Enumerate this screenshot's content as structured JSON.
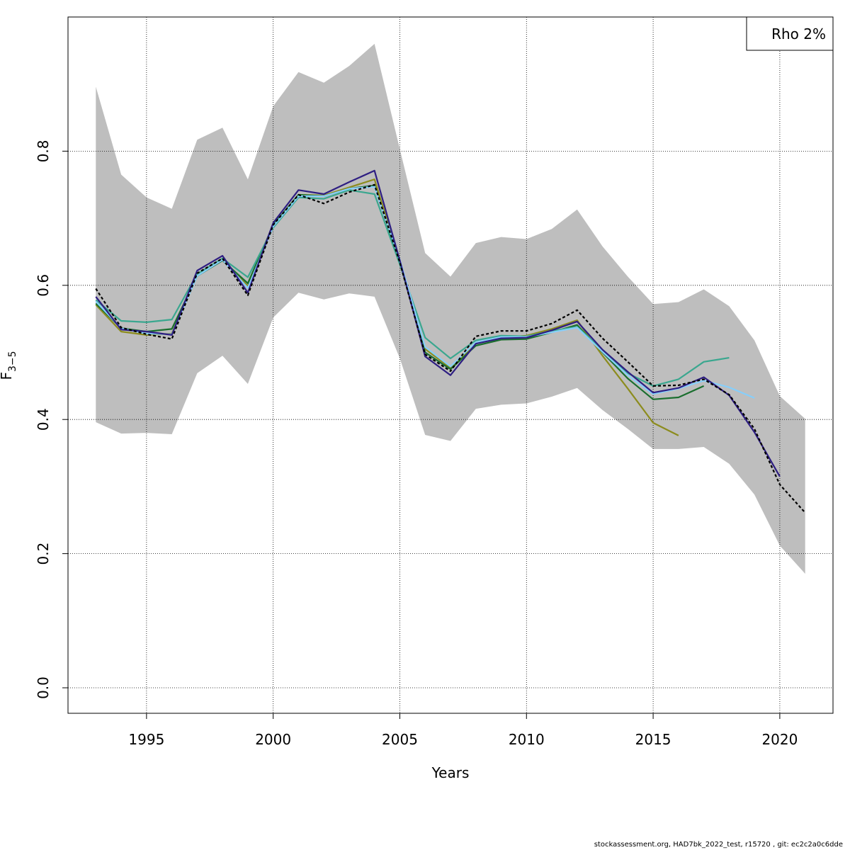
{
  "chart_data": {
    "type": "line",
    "title": "",
    "xlabel": "Years",
    "ylabel_main": "F",
    "ylabel_sub": "3−5",
    "xlim": [
      1991.9,
      2022.1
    ],
    "ylim": [
      -0.038,
      1.0
    ],
    "xticks": [
      1995,
      2000,
      2005,
      2010,
      2015,
      2020
    ],
    "yticks": [
      0.0,
      0.2,
      0.4,
      0.6,
      0.8
    ],
    "ytick_labels": [
      "0.0",
      "0.2",
      "0.4",
      "0.6",
      "0.8"
    ],
    "grid": true,
    "legend_text": "Rho 2%",
    "legend_position": "top-right",
    "confidence_band": {
      "x": [
        1993,
        1994,
        1995,
        1996,
        1997,
        1998,
        1999,
        2000,
        2001,
        2002,
        2003,
        2004,
        2005,
        2006,
        2007,
        2008,
        2009,
        2010,
        2011,
        2012,
        2013,
        2014,
        2015,
        2016,
        2017,
        2018,
        2019,
        2020,
        2021
      ],
      "lower": [
        0.396,
        0.379,
        0.38,
        0.378,
        0.469,
        0.495,
        0.453,
        0.552,
        0.589,
        0.579,
        0.588,
        0.583,
        0.491,
        0.377,
        0.368,
        0.416,
        0.422,
        0.424,
        0.434,
        0.447,
        0.414,
        0.386,
        0.356,
        0.356,
        0.359,
        0.334,
        0.288,
        0.212,
        0.17
      ],
      "upper": [
        0.896,
        0.765,
        0.731,
        0.714,
        0.817,
        0.835,
        0.758,
        0.867,
        0.918,
        0.902,
        0.927,
        0.96,
        0.803,
        0.648,
        0.613,
        0.663,
        0.672,
        0.669,
        0.684,
        0.713,
        0.658,
        0.613,
        0.572,
        0.575,
        0.594,
        0.569,
        0.518,
        0.435,
        0.401
      ],
      "color": "#bebebe"
    },
    "series": [
      {
        "x": [
          1993,
          1994,
          1995,
          1996,
          1997,
          1998,
          1999,
          2000,
          2001,
          2002,
          2003,
          2004,
          2005,
          2006,
          2007,
          2008,
          2009,
          2010,
          2011,
          2012,
          2013,
          2014,
          2015,
          2016,
          2017,
          2018,
          2019,
          2020,
          2021
        ],
        "values": [
          0.595,
          0.537,
          0.527,
          0.52,
          0.618,
          0.64,
          0.585,
          0.69,
          0.735,
          0.722,
          0.739,
          0.75,
          0.634,
          0.497,
          0.472,
          0.524,
          0.532,
          0.532,
          0.543,
          0.563,
          0.521,
          0.486,
          0.45,
          0.451,
          0.46,
          0.437,
          0.386,
          0.303,
          0.261
        ],
        "color": "#000000",
        "dashed": true
      },
      {
        "x": [
          1993,
          1994,
          1995,
          1996,
          1997,
          1998,
          1999,
          2000,
          2001,
          2002,
          2003,
          2004,
          2005,
          2006,
          2007,
          2008,
          2009,
          2010,
          2011,
          2012,
          2013,
          2014,
          2015,
          2016,
          2017,
          2018,
          2019,
          2020
        ],
        "values": [
          0.583,
          0.534,
          0.531,
          0.526,
          0.622,
          0.644,
          0.589,
          0.693,
          0.742,
          0.736,
          0.754,
          0.771,
          0.637,
          0.494,
          0.466,
          0.513,
          0.521,
          0.522,
          0.533,
          0.546,
          0.504,
          0.471,
          0.44,
          0.447,
          0.463,
          0.436,
          0.381,
          0.315
        ],
        "color": "#2e1e82",
        "dashed": false
      },
      {
        "x": [
          1993,
          1994,
          1995,
          1996,
          1997,
          1998,
          1999,
          2000,
          2001,
          2002,
          2003,
          2004,
          2005,
          2006,
          2007,
          2008,
          2009,
          2010,
          2011,
          2012,
          2013,
          2014,
          2015,
          2016,
          2017,
          2018,
          2019
        ],
        "values": [
          0.576,
          0.536,
          0.528,
          0.527,
          0.614,
          0.638,
          0.596,
          0.688,
          0.733,
          0.733,
          0.744,
          0.747,
          0.638,
          0.508,
          0.479,
          0.515,
          0.523,
          0.523,
          0.53,
          0.537,
          0.501,
          0.466,
          0.438,
          0.446,
          0.458,
          0.448,
          0.432
        ],
        "color": "#87cefa",
        "dashed": false
      },
      {
        "x": [
          1993,
          1994,
          1995,
          1996,
          1997,
          1998,
          1999,
          2000,
          2001,
          2002,
          2003,
          2004,
          2005,
          2006,
          2007,
          2008,
          2009,
          2010,
          2011,
          2012,
          2013,
          2014,
          2015,
          2016,
          2017,
          2018
        ],
        "values": [
          0.578,
          0.547,
          0.545,
          0.549,
          0.617,
          0.64,
          0.612,
          0.686,
          0.731,
          0.729,
          0.742,
          0.736,
          0.631,
          0.522,
          0.491,
          0.518,
          0.525,
          0.524,
          0.532,
          0.538,
          0.504,
          0.469,
          0.45,
          0.46,
          0.486,
          0.492
        ],
        "color": "#3aa78f",
        "dashed": false
      },
      {
        "x": [
          1993,
          1994,
          1995,
          1996,
          1997,
          1998,
          1999,
          2000,
          2001,
          2002,
          2003,
          2004,
          2005,
          2006,
          2007,
          2008,
          2009,
          2010,
          2011,
          2012,
          2013,
          2014,
          2015,
          2016,
          2017
        ],
        "values": [
          0.573,
          0.536,
          0.531,
          0.535,
          0.614,
          0.637,
          0.603,
          0.69,
          0.735,
          0.733,
          0.744,
          0.749,
          0.634,
          0.5,
          0.475,
          0.51,
          0.519,
          0.52,
          0.53,
          0.541,
          0.5,
          0.461,
          0.43,
          0.433,
          0.45
        ],
        "color": "#1a6e2e",
        "dashed": false
      },
      {
        "x": [
          1993,
          1994,
          1995,
          1996,
          1997,
          1998,
          1999,
          2000,
          2001,
          2002,
          2003,
          2004,
          2005,
          2006,
          2007,
          2008,
          2009,
          2010,
          2011,
          2012,
          2013,
          2014,
          2015,
          2016
        ],
        "values": [
          0.571,
          0.531,
          0.526,
          0.528,
          0.614,
          0.639,
          0.599,
          0.688,
          0.735,
          0.734,
          0.746,
          0.758,
          0.635,
          0.505,
          0.477,
          0.513,
          0.522,
          0.525,
          0.535,
          0.548,
          0.495,
          0.446,
          0.395,
          0.376
        ],
        "color": "#8c8c1e",
        "dashed": false
      }
    ]
  },
  "footer": "stockassessment.org, HAD7bk_2022_test, r15720 , git: ec2c2a0c6dde"
}
